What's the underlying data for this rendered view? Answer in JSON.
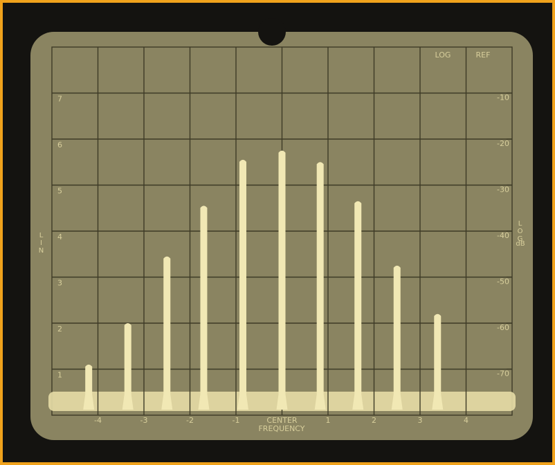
{
  "chart_data": {
    "type": "spike",
    "top_labels": [
      "LOG",
      "REF"
    ],
    "y_label": "LIN",
    "y2_label": "LOG",
    "y2_unit": "dB",
    "x_label": "FREQUENCY",
    "x": [
      -4.2,
      -3.35,
      -2.5,
      -1.7,
      -0.85,
      0,
      0.83,
      1.65,
      2.5,
      3.38
    ],
    "values": [
      1.1,
      2.0,
      3.45,
      4.55,
      5.55,
      5.75,
      5.5,
      4.65,
      3.25,
      2.2
    ],
    "color": "#f1e8b4",
    "xlim": [
      -5,
      5
    ],
    "xticks": [
      -4,
      -3,
      -2,
      -1,
      {
        "value": 0,
        "label": "CENTER"
      },
      1,
      2,
      3,
      4
    ],
    "ylim": [
      0,
      8
    ],
    "yticks": [
      1,
      2,
      3,
      4,
      5,
      6,
      7
    ],
    "y2lim": [
      -80,
      0
    ],
    "y2ticks": [
      -70,
      -60,
      -50,
      -40,
      -30,
      -20,
      -10
    ],
    "grid": true
  }
}
